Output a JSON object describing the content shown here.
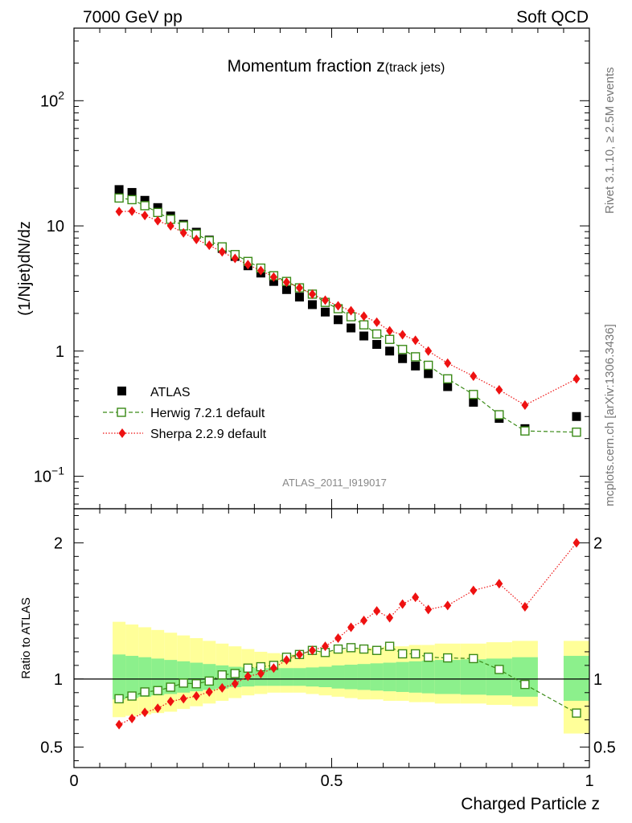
{
  "header": {
    "left": "7000 GeV pp",
    "right": "Soft QCD"
  },
  "side_texts": {
    "rivet": "Rivet 3.1.10, ≥ 2.5M events",
    "mcplots": "mcplots.cern.ch [arXiv:1306.3436]"
  },
  "colors": {
    "atlas": "#000000",
    "herwig": "#3a8a17",
    "sherpa": "#ee1111",
    "band_inner": "#8cf08c",
    "band_outer": "#ffff99"
  },
  "chart_data": [
    {
      "type": "scatter",
      "title_main": "Momentum fraction z",
      "title_sub": "(track jets)",
      "ylabel": "(1/Njet)dN/dz",
      "yscale": "log",
      "xlim": [
        0,
        1
      ],
      "ylim": [
        0.055,
        380
      ],
      "y_ticks": [
        {
          "value": 100,
          "base": "10",
          "exp": "2"
        },
        {
          "value": 10,
          "label": "10"
        },
        {
          "value": 1,
          "label": "1"
        },
        {
          "value": 0.1,
          "base": "10",
          "exp": "−1"
        }
      ],
      "watermark": "ATLAS_2011_I919017",
      "legend": [
        "ATLAS",
        "Herwig 7.2.1 default",
        "Sherpa 2.2.9 default"
      ],
      "x": [
        0.0875,
        0.1125,
        0.1375,
        0.1625,
        0.1875,
        0.2125,
        0.2375,
        0.2625,
        0.2875,
        0.3125,
        0.3375,
        0.3625,
        0.3875,
        0.4125,
        0.4375,
        0.4625,
        0.4875,
        0.5125,
        0.5375,
        0.5625,
        0.5875,
        0.6125,
        0.6375,
        0.6625,
        0.6875,
        0.725,
        0.775,
        0.825,
        0.875,
        0.975
      ],
      "series": [
        {
          "name": "ATLAS",
          "values": [
            19.5,
            18.5,
            16.0,
            14.0,
            12.0,
            10.3,
            8.9,
            7.7,
            6.6,
            5.7,
            4.8,
            4.2,
            3.6,
            3.1,
            2.7,
            2.35,
            2.05,
            1.78,
            1.53,
            1.32,
            1.13,
            1.0,
            0.87,
            0.76,
            0.66,
            0.52,
            0.39,
            0.29,
            0.24,
            0.3
          ]
        },
        {
          "name": "Herwig 7.2.1 default",
          "values": [
            16.7,
            16.2,
            14.5,
            12.8,
            11.3,
            10.0,
            8.6,
            7.6,
            6.8,
            5.9,
            5.2,
            4.6,
            4.0,
            3.6,
            3.2,
            2.85,
            2.45,
            2.18,
            1.88,
            1.62,
            1.37,
            1.24,
            1.03,
            0.9,
            0.77,
            0.6,
            0.45,
            0.31,
            0.23,
            0.225
          ]
        },
        {
          "name": "Sherpa 2.2.9 default",
          "values": [
            13.0,
            13.1,
            12.1,
            11.0,
            10.0,
            8.8,
            7.8,
            7.0,
            6.2,
            5.5,
            4.9,
            4.4,
            3.9,
            3.55,
            3.2,
            2.85,
            2.55,
            2.3,
            2.1,
            1.9,
            1.7,
            1.45,
            1.35,
            1.22,
            1.0,
            0.8,
            0.63,
            0.49,
            0.37,
            0.6
          ]
        }
      ]
    },
    {
      "type": "scatter",
      "ylabel": "Ratio to ATLAS",
      "xlabel": "Charged Particle z",
      "xlim": [
        0,
        1
      ],
      "ylim": [
        0.35,
        2.25
      ],
      "x_ticks": [
        "0",
        "0.5",
        "1"
      ],
      "y_ticks": [
        "2",
        "1",
        "0.5"
      ],
      "x": [
        0.0875,
        0.1125,
        0.1375,
        0.1625,
        0.1875,
        0.2125,
        0.2375,
        0.2625,
        0.2875,
        0.3125,
        0.3375,
        0.3625,
        0.3875,
        0.4125,
        0.4375,
        0.4625,
        0.4875,
        0.5125,
        0.5375,
        0.5625,
        0.5875,
        0.6125,
        0.6375,
        0.6625,
        0.6875,
        0.725,
        0.775,
        0.825,
        0.875,
        0.975
      ],
      "series": [
        {
          "name": "Herwig 7.2.1 default",
          "values": [
            0.855,
            0.875,
            0.905,
            0.915,
            0.94,
            0.97,
            0.965,
            0.985,
            1.03,
            1.04,
            1.08,
            1.09,
            1.1,
            1.16,
            1.18,
            1.21,
            1.195,
            1.22,
            1.23,
            1.22,
            1.21,
            1.24,
            1.185,
            1.185,
            1.16,
            1.155,
            1.15,
            1.07,
            0.96,
            0.75
          ]
        },
        {
          "name": "Sherpa 2.2.9 default",
          "values": [
            0.665,
            0.71,
            0.755,
            0.785,
            0.835,
            0.855,
            0.875,
            0.905,
            0.935,
            0.965,
            1.02,
            1.04,
            1.08,
            1.14,
            1.18,
            1.21,
            1.24,
            1.3,
            1.38,
            1.43,
            1.5,
            1.45,
            1.55,
            1.6,
            1.51,
            1.54,
            1.65,
            1.7,
            1.53,
            2.0
          ]
        }
      ],
      "bands": [
        {
          "x0": 0.075,
          "x1": 0.1,
          "inner": [
            0.85,
            1.18
          ],
          "outer": [
            0.72,
            1.42
          ]
        },
        {
          "x0": 0.1,
          "x1": 0.125,
          "inner": [
            0.86,
            1.17
          ],
          "outer": [
            0.73,
            1.4
          ]
        },
        {
          "x0": 0.125,
          "x1": 0.15,
          "inner": [
            0.87,
            1.16
          ],
          "outer": [
            0.74,
            1.38
          ]
        },
        {
          "x0": 0.15,
          "x1": 0.175,
          "inner": [
            0.88,
            1.15
          ],
          "outer": [
            0.75,
            1.36
          ]
        },
        {
          "x0": 0.175,
          "x1": 0.2,
          "inner": [
            0.89,
            1.14
          ],
          "outer": [
            0.76,
            1.34
          ]
        },
        {
          "x0": 0.2,
          "x1": 0.225,
          "inner": [
            0.9,
            1.13
          ],
          "outer": [
            0.78,
            1.32
          ]
        },
        {
          "x0": 0.225,
          "x1": 0.25,
          "inner": [
            0.91,
            1.12
          ],
          "outer": [
            0.8,
            1.3
          ]
        },
        {
          "x0": 0.25,
          "x1": 0.275,
          "inner": [
            0.92,
            1.11
          ],
          "outer": [
            0.82,
            1.28
          ]
        },
        {
          "x0": 0.275,
          "x1": 0.3,
          "inner": [
            0.93,
            1.1
          ],
          "outer": [
            0.84,
            1.26
          ]
        },
        {
          "x0": 0.3,
          "x1": 0.325,
          "inner": [
            0.94,
            1.09
          ],
          "outer": [
            0.86,
            1.24
          ]
        },
        {
          "x0": 0.325,
          "x1": 0.35,
          "inner": [
            0.945,
            1.085
          ],
          "outer": [
            0.88,
            1.22
          ]
        },
        {
          "x0": 0.35,
          "x1": 0.375,
          "inner": [
            0.95,
            1.08
          ],
          "outer": [
            0.89,
            1.2
          ]
        },
        {
          "x0": 0.375,
          "x1": 0.4,
          "inner": [
            0.95,
            1.08
          ],
          "outer": [
            0.9,
            1.19
          ]
        },
        {
          "x0": 0.4,
          "x1": 0.425,
          "inner": [
            0.95,
            1.08
          ],
          "outer": [
            0.9,
            1.18
          ]
        },
        {
          "x0": 0.425,
          "x1": 0.45,
          "inner": [
            0.95,
            1.08
          ],
          "outer": [
            0.9,
            1.18
          ]
        },
        {
          "x0": 0.45,
          "x1": 0.475,
          "inner": [
            0.945,
            1.085
          ],
          "outer": [
            0.89,
            1.19
          ]
        },
        {
          "x0": 0.475,
          "x1": 0.5,
          "inner": [
            0.94,
            1.09
          ],
          "outer": [
            0.88,
            1.2
          ]
        },
        {
          "x0": 0.5,
          "x1": 0.525,
          "inner": [
            0.93,
            1.1
          ],
          "outer": [
            0.87,
            1.21
          ]
        },
        {
          "x0": 0.525,
          "x1": 0.55,
          "inner": [
            0.925,
            1.105
          ],
          "outer": [
            0.86,
            1.22
          ]
        },
        {
          "x0": 0.55,
          "x1": 0.575,
          "inner": [
            0.92,
            1.11
          ],
          "outer": [
            0.85,
            1.23
          ]
        },
        {
          "x0": 0.575,
          "x1": 0.6,
          "inner": [
            0.915,
            1.115
          ],
          "outer": [
            0.85,
            1.23
          ]
        },
        {
          "x0": 0.6,
          "x1": 0.625,
          "inner": [
            0.91,
            1.12
          ],
          "outer": [
            0.84,
            1.24
          ]
        },
        {
          "x0": 0.625,
          "x1": 0.65,
          "inner": [
            0.905,
            1.125
          ],
          "outer": [
            0.84,
            1.24
          ]
        },
        {
          "x0": 0.65,
          "x1": 0.675,
          "inner": [
            0.9,
            1.13
          ],
          "outer": [
            0.83,
            1.25
          ]
        },
        {
          "x0": 0.675,
          "x1": 0.7,
          "inner": [
            0.895,
            1.135
          ],
          "outer": [
            0.83,
            1.25
          ]
        },
        {
          "x0": 0.7,
          "x1": 0.75,
          "inner": [
            0.89,
            1.14
          ],
          "outer": [
            0.82,
            1.26
          ]
        },
        {
          "x0": 0.75,
          "x1": 0.8,
          "inner": [
            0.885,
            1.145
          ],
          "outer": [
            0.82,
            1.26
          ]
        },
        {
          "x0": 0.8,
          "x1": 0.85,
          "inner": [
            0.88,
            1.15
          ],
          "outer": [
            0.81,
            1.27
          ]
        },
        {
          "x0": 0.85,
          "x1": 0.9,
          "inner": [
            0.87,
            1.16
          ],
          "outer": [
            0.8,
            1.28
          ]
        },
        {
          "x0": 0.95,
          "x1": 1.0,
          "inner": [
            0.84,
            1.17
          ],
          "outer": [
            0.6,
            1.28
          ]
        }
      ]
    }
  ]
}
